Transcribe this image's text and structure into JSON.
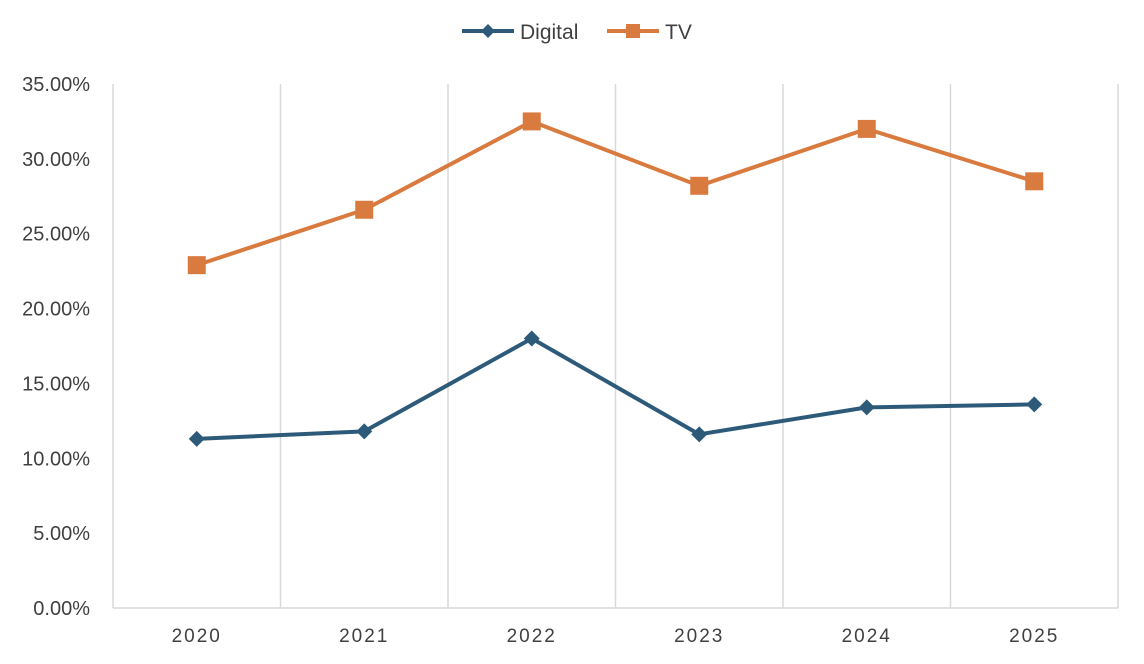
{
  "chart_data": {
    "type": "line",
    "title": "",
    "xlabel": "",
    "ylabel": "",
    "categories": [
      "2020",
      "2021",
      "2022",
      "2023",
      "2024",
      "2025"
    ],
    "ylim": [
      0,
      0.35
    ],
    "y_ticks": [
      0,
      0.05,
      0.1,
      0.15,
      0.2,
      0.25,
      0.3,
      0.35
    ],
    "y_tick_labels": [
      "0.00%",
      "5.00%",
      "10.00%",
      "15.00%",
      "20.00%",
      "25.00%",
      "30.00%",
      "35.00%"
    ],
    "grid": "vertical",
    "legend_position": "top-center",
    "series": [
      {
        "name": "Digital",
        "marker": "diamond",
        "color": "#2E5A7A",
        "values": [
          0.113,
          0.118,
          0.18,
          0.116,
          0.134,
          0.136
        ]
      },
      {
        "name": "TV",
        "marker": "square",
        "color": "#D97A3E",
        "values": [
          0.229,
          0.266,
          0.325,
          0.282,
          0.32,
          0.285
        ]
      }
    ]
  }
}
